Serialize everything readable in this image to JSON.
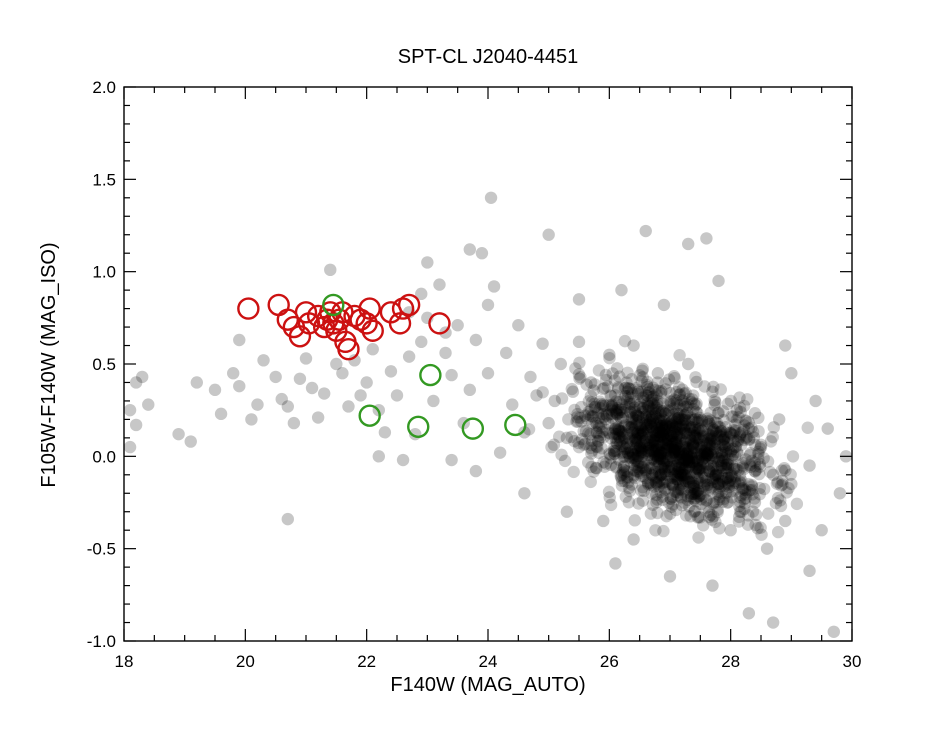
{
  "chart_data": {
    "type": "scatter",
    "title": "SPT-CL J2040-4451",
    "xlabel": "F140W (MAG_AUTO)",
    "ylabel": "F105W-F140W (MAG_ISO)",
    "xlim": [
      18,
      30
    ],
    "ylim": [
      -1.0,
      2.0
    ],
    "x_ticks": [
      "18",
      "20",
      "22",
      "24",
      "26",
      "28",
      "30"
    ],
    "y_ticks": [
      "-1.0",
      "-0.5",
      "0.0",
      "0.5",
      "1.0",
      "1.5",
      "2.0"
    ],
    "grid": false,
    "legend": "none",
    "colors": {
      "background_points": "#000000",
      "red_markers": "#cc1111",
      "green_markers": "#339922"
    },
    "series": [
      {
        "marker": "filled-circle-translucent",
        "color": "#000000",
        "points": [
          [
            18.1,
            0.25
          ],
          [
            18.2,
            0.4
          ],
          [
            18.3,
            0.43
          ],
          [
            18.4,
            0.28
          ],
          [
            18.2,
            0.17
          ],
          [
            18.1,
            0.05
          ],
          [
            18.9,
            0.12
          ],
          [
            19.1,
            0.08
          ],
          [
            19.2,
            0.4
          ],
          [
            19.5,
            0.36
          ],
          [
            19.6,
            0.23
          ],
          [
            19.8,
            0.45
          ],
          [
            19.9,
            0.38
          ],
          [
            19.9,
            0.63
          ],
          [
            20.1,
            0.2
          ],
          [
            20.2,
            0.28
          ],
          [
            20.3,
            0.52
          ],
          [
            20.5,
            0.43
          ],
          [
            20.6,
            0.31
          ],
          [
            20.7,
            0.27
          ],
          [
            20.8,
            0.18
          ],
          [
            20.9,
            0.42
          ],
          [
            20.7,
            -0.34
          ],
          [
            21.0,
            0.53
          ],
          [
            21.1,
            0.37
          ],
          [
            21.2,
            0.21
          ],
          [
            21.3,
            0.34
          ],
          [
            21.4,
            1.01
          ],
          [
            21.5,
            0.5
          ],
          [
            21.6,
            0.45
          ],
          [
            21.7,
            0.27
          ],
          [
            21.8,
            0.52
          ],
          [
            21.9,
            0.33
          ],
          [
            22.0,
            0.4
          ],
          [
            22.1,
            0.58
          ],
          [
            22.2,
            0.25
          ],
          [
            22.3,
            0.13
          ],
          [
            22.4,
            0.46
          ],
          [
            22.5,
            0.33
          ],
          [
            22.6,
            -0.02
          ],
          [
            22.7,
            0.54
          ],
          [
            22.8,
            0.12
          ],
          [
            22.9,
            0.62
          ],
          [
            23.0,
            0.75
          ],
          [
            23.1,
            0.3
          ],
          [
            23.2,
            0.93
          ],
          [
            23.3,
            0.56
          ],
          [
            23.4,
            0.44
          ],
          [
            23.5,
            0.71
          ],
          [
            23.6,
            0.18
          ],
          [
            23.7,
            0.36
          ],
          [
            23.8,
            0.63
          ],
          [
            23.9,
            1.1
          ],
          [
            24.0,
            0.45
          ],
          [
            24.1,
            0.92
          ],
          [
            24.2,
            0.02
          ],
          [
            24.3,
            0.56
          ],
          [
            24.4,
            0.28
          ],
          [
            24.5,
            0.71
          ],
          [
            24.6,
            0.13
          ],
          [
            24.7,
            0.43
          ],
          [
            24.8,
            0.33
          ],
          [
            24.9,
            0.61
          ],
          [
            25.0,
            0.18
          ],
          [
            24.05,
            1.4
          ],
          [
            22.9,
            0.88
          ],
          [
            23.0,
            1.05
          ],
          [
            22.7,
            0.78
          ],
          [
            23.7,
            1.12
          ],
          [
            23.3,
            0.67
          ],
          [
            24.0,
            0.82
          ],
          [
            25.1,
            0.3
          ],
          [
            25.2,
            0.5
          ],
          [
            25.3,
            0.1
          ],
          [
            25.4,
            0.35
          ],
          [
            25.5,
            0.62
          ],
          [
            25.6,
            0.22
          ],
          [
            25.7,
            0.4
          ],
          [
            25.8,
            0.05
          ],
          [
            25.9,
            0.28
          ],
          [
            26.0,
            0.55
          ],
          [
            26.1,
            0.15
          ],
          [
            26.2,
            -0.1
          ],
          [
            26.3,
            0.35
          ],
          [
            26.4,
            0.6
          ],
          [
            26.5,
            0.05
          ],
          [
            26.6,
            0.25
          ],
          [
            26.7,
            -0.2
          ],
          [
            26.8,
            0.45
          ],
          [
            26.9,
            0.1
          ],
          [
            27.0,
            0.3
          ],
          [
            27.1,
            -0.05
          ],
          [
            27.2,
            0.2
          ],
          [
            27.3,
            0.5
          ],
          [
            27.4,
            -0.3
          ],
          [
            27.5,
            0.15
          ],
          [
            27.6,
            0.0
          ],
          [
            27.7,
            0.35
          ],
          [
            27.8,
            -0.15
          ],
          [
            27.9,
            0.1
          ],
          [
            28.0,
            -0.4
          ],
          [
            28.1,
            0.25
          ],
          [
            28.2,
            -0.05
          ],
          [
            28.3,
            0.15
          ],
          [
            28.4,
            -0.25
          ],
          [
            28.5,
            0.05
          ],
          [
            28.6,
            -0.5
          ],
          [
            28.7,
            -0.1
          ],
          [
            28.8,
            0.2
          ],
          [
            28.9,
            -0.35
          ],
          [
            29.0,
            -0.15
          ],
          [
            25.0,
            1.2
          ],
          [
            25.5,
            0.85
          ],
          [
            26.2,
            0.9
          ],
          [
            26.6,
            1.22
          ],
          [
            27.3,
            1.15
          ],
          [
            27.6,
            1.18
          ],
          [
            26.9,
            0.82
          ],
          [
            27.8,
            0.95
          ],
          [
            26.4,
            -0.45
          ],
          [
            26.1,
            -0.58
          ],
          [
            27.0,
            -0.65
          ],
          [
            27.7,
            -0.7
          ],
          [
            28.3,
            -0.85
          ],
          [
            28.7,
            -0.9
          ],
          [
            29.3,
            -0.62
          ],
          [
            29.7,
            -0.95
          ],
          [
            29.5,
            -0.4
          ],
          [
            29.8,
            -0.2
          ],
          [
            29.9,
            0.0
          ],
          [
            29.6,
            0.15
          ],
          [
            29.3,
            -0.05
          ],
          [
            29.4,
            0.3
          ],
          [
            29.0,
            0.45
          ],
          [
            28.9,
            0.6
          ],
          [
            25.3,
            -0.3
          ],
          [
            25.9,
            -0.35
          ],
          [
            24.6,
            -0.2
          ],
          [
            23.8,
            -0.08
          ],
          [
            23.4,
            -0.02
          ],
          [
            22.2,
            0.0
          ]
        ]
      },
      {
        "marker": "open-circle",
        "color": "#cc1111",
        "points": [
          [
            20.05,
            0.8
          ],
          [
            20.55,
            0.82
          ],
          [
            20.7,
            0.74
          ],
          [
            20.8,
            0.7
          ],
          [
            20.9,
            0.65
          ],
          [
            21.0,
            0.78
          ],
          [
            21.05,
            0.72
          ],
          [
            21.2,
            0.76
          ],
          [
            21.3,
            0.7
          ],
          [
            21.35,
            0.74
          ],
          [
            21.4,
            0.78
          ],
          [
            21.45,
            0.72
          ],
          [
            21.5,
            0.68
          ],
          [
            21.55,
            0.74
          ],
          [
            21.6,
            0.78
          ],
          [
            21.65,
            0.62
          ],
          [
            21.7,
            0.58
          ],
          [
            21.8,
            0.76
          ],
          [
            21.9,
            0.74
          ],
          [
            22.0,
            0.72
          ],
          [
            22.05,
            0.8
          ],
          [
            22.1,
            0.68
          ],
          [
            22.4,
            0.78
          ],
          [
            22.55,
            0.72
          ],
          [
            22.6,
            0.8
          ],
          [
            22.7,
            0.82
          ],
          [
            23.2,
            0.72
          ]
        ]
      },
      {
        "marker": "open-circle",
        "color": "#339922",
        "points": [
          [
            21.45,
            0.82
          ],
          [
            22.05,
            0.22
          ],
          [
            22.85,
            0.16
          ],
          [
            23.05,
            0.44
          ],
          [
            23.75,
            0.15
          ],
          [
            24.45,
            0.17
          ]
        ]
      }
    ]
  }
}
